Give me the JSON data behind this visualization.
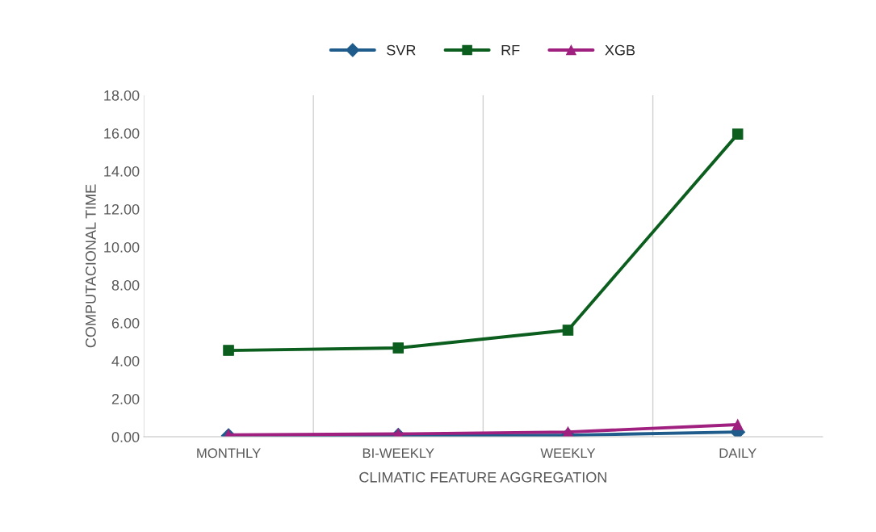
{
  "chart_data": {
    "type": "line",
    "xlabel": "CLIMATIC FEATURE AGGREGATION",
    "ylabel": "COMPUTACIONAL TIME",
    "categories": [
      "MONTHLY",
      "BI-WEEKLY",
      "WEEKLY",
      "DAILY"
    ],
    "series": [
      {
        "name": "SVR",
        "color": "#1f5c8b",
        "marker": "diamond",
        "values": [
          0.05,
          0.07,
          0.08,
          0.25
        ]
      },
      {
        "name": "RF",
        "color": "#0b5e1e",
        "marker": "square",
        "values": [
          4.55,
          4.68,
          5.62,
          15.95
        ]
      },
      {
        "name": "XGB",
        "color": "#a0207f",
        "marker": "triangle",
        "values": [
          0.1,
          0.15,
          0.25,
          0.64
        ]
      }
    ],
    "ylim": [
      0,
      18
    ],
    "yticks": [
      {
        "value": 0,
        "label": "0.00"
      },
      {
        "value": 2,
        "label": "2.00"
      },
      {
        "value": 4,
        "label": "4.00"
      },
      {
        "value": 6,
        "label": "6.00"
      },
      {
        "value": 8,
        "label": "8.00"
      },
      {
        "value": 10,
        "label": "10.00"
      },
      {
        "value": 12,
        "label": "12.00"
      },
      {
        "value": 14,
        "label": "14.00"
      },
      {
        "value": 16,
        "label": "16.00"
      },
      {
        "value": 18,
        "label": "18.00"
      }
    ],
    "grid": "x",
    "legend": "top",
    "line_style": "solid"
  }
}
